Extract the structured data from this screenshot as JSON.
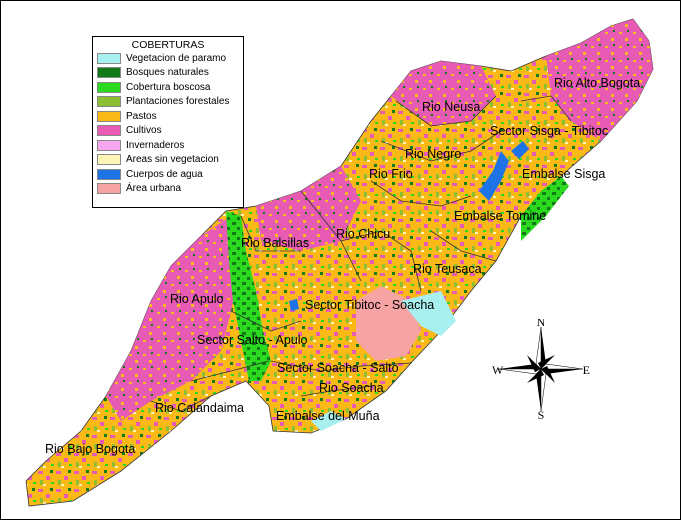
{
  "legend": {
    "title": "COBERTURAS",
    "items": [
      {
        "label": "Vegetacion de paramo",
        "color": "#a8f0f0"
      },
      {
        "label": "Bosques naturales",
        "color": "#137a1a"
      },
      {
        "label": "Cobertura boscosa",
        "color": "#2bd91e"
      },
      {
        "label": "Plantaciones forestales",
        "color": "#8cbf32"
      },
      {
        "label": "Pastos",
        "color": "#fbb917"
      },
      {
        "label": "Cultivos",
        "color": "#e75bb5"
      },
      {
        "label": "Invernaderos",
        "color": "#f7a7f0"
      },
      {
        "label": "Areas sin vegetacion",
        "color": "#fdf5b5"
      },
      {
        "label": "Cuerpos de agua",
        "color": "#1e74e6"
      },
      {
        "label": "Área urbana",
        "color": "#f5a3a3"
      }
    ]
  },
  "regions": {
    "rio_alto_bogota": "Rio Alto Bogota",
    "rio_neusa": "Rio Neusa",
    "sector_sisga_tibitoc": "Sector Sisga - Tibitoc",
    "rio_negro": "Rio Negro",
    "rio_frio": "Rio Frio",
    "embalse_sisga": "Embalse Sisga",
    "embalse_tomine": "Embalse Tomine",
    "rio_balsillas": "Rio Balsillas",
    "rio_chicu": "Rio Chicu",
    "rio_teusaca": "Rio Teusaca",
    "rio_apulo": "Rio Apulo",
    "sector_tibitoc_soacha": "Sector Tibitoc - Soacha",
    "sector_salto_apulo": "Sector Salto - Apulo",
    "sector_soacha_salto": "Sector Soacha - Salto",
    "rio_soacha": "Rio Soacha",
    "rio_calandaima": "Rio Calandaima",
    "embalse_del_muna": "Embalse del Muña",
    "rio_bajo_bogota": "Rio Bajo Bogota"
  },
  "compass": {
    "n": "N",
    "s": "S",
    "e": "E",
    "w": "W"
  }
}
